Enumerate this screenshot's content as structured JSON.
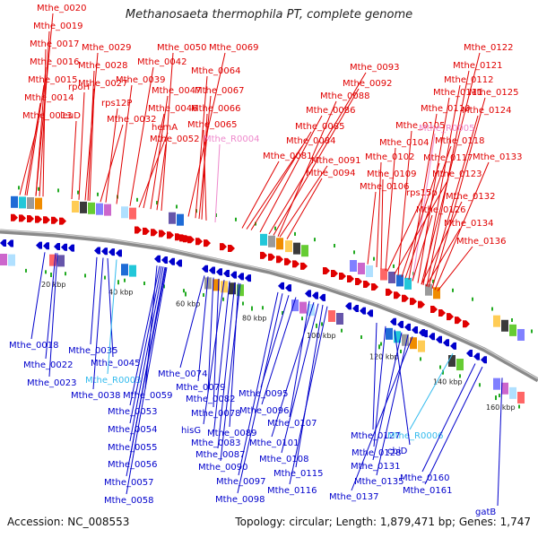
{
  "title": "Methanosaeta thermophila PT, complete genome",
  "footer": {
    "accession": "Accession: NC_008553",
    "summary": "Topology: circular; Length: 1,879,471 bp; Genes: 1,747"
  },
  "colors": {
    "plus_strand": "#e00000",
    "minus_strand": "#0000cc",
    "rna_plus": "#ee88cc",
    "rna_minus": "#33bbee",
    "backbone": "#8a8a8a"
  },
  "ticks": [
    "20 kbp",
    "40 kbp",
    "60 kbp",
    "80 kbp",
    "100 kbp",
    "120 kbp",
    "140 kbp",
    "160 kbp"
  ],
  "top_labels": [
    "Mthe_0020",
    "Mthe_0019",
    "Mthe_0017",
    "Mthe_0016",
    "Mthe_0015",
    "Mthe_0014",
    "Mthe_0013",
    "Mthe_0029",
    "Mthe_0028",
    "rpoH",
    "Mthe_0027",
    "leuD",
    "Mthe_0039",
    "rps12P",
    "Mthe_0032",
    "Mthe_0042",
    "Mthe_0050",
    "Mthe_0047",
    "Mthe_0046",
    "hemA",
    "Mthe_0052",
    "Mthe_0069",
    "Mthe_0064",
    "Mthe_0067",
    "Mthe_0066",
    "Mthe_0065",
    "Mthe_R0004",
    "Mthe_0093",
    "Mthe_0092",
    "Mthe_0088",
    "Mthe_0086",
    "Mthe_0085",
    "Mthe_0084",
    "Mthe_0081",
    "Mthe_0091",
    "Mthe_0094",
    "Mthe_0122",
    "Mthe_0121",
    "Mthe_0112",
    "Mthe_0111",
    "Mthe_0125",
    "Mthe_0110",
    "Mthe_0124",
    "Mthe_0105",
    "Mthe_R0005",
    "Mthe_0104",
    "Mthe_0118",
    "Mthe_0102",
    "Mthe_0117",
    "Mthe_0133",
    "Mthe_0109",
    "Mthe_0123",
    "Mthe_0106",
    "rps15p",
    "Mthe_0132",
    "Mthe_0126",
    "Mthe_0134",
    "Mthe_0136"
  ],
  "bottom_labels": [
    "Mthe_0018",
    "Mthe_0022",
    "Mthe_0023",
    "Mthe_0035",
    "Mthe_0045",
    "Mthe_R0003",
    "Mthe_0038",
    "Mthe_0059",
    "Mthe_0053",
    "Mthe_0054",
    "Mthe_0055",
    "Mthe_0056",
    "Mthe_0057",
    "Mthe_0058",
    "Mthe_0074",
    "Mthe_0079",
    "Mthe_0082",
    "Mthe_0078",
    "hisG",
    "Mthe_0083",
    "Mthe_0087",
    "Mthe_0090",
    "Mthe_0089",
    "Mthe_0097",
    "Mthe_0098",
    "Mthe_0095",
    "Mthe_0096",
    "Mthe_0107",
    "Mthe_0101",
    "Mthe_0108",
    "Mthe_0115",
    "Mthe_0116",
    "Mthe_0127",
    "Mthe_0128",
    "Mthe_R0006",
    "cbiD",
    "Mthe_0131",
    "Mthe_0135",
    "Mthe_0137",
    "Mthe_0160",
    "Mthe_0161",
    "gatB"
  ]
}
